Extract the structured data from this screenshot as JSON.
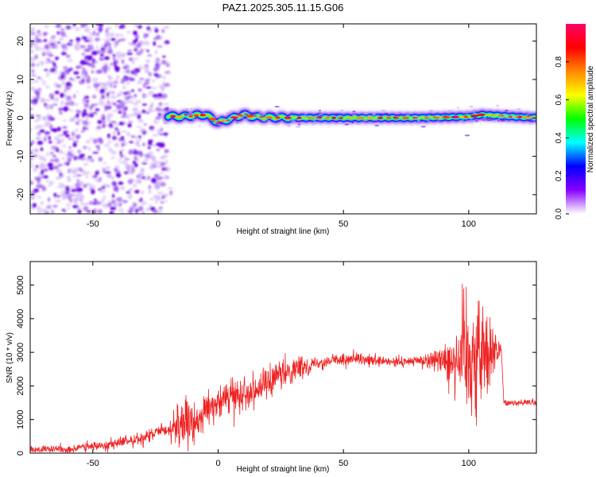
{
  "title": "PAZ1.2025.305.11.15.G06",
  "chart_data": [
    {
      "type": "heatmap",
      "xlabel": "Height of straight line (km)",
      "ylabel": "Frequency (Hz)",
      "xlim": [
        -75,
        127
      ],
      "ylim": [
        -25,
        24.5
      ],
      "xticks": [
        "-50",
        "0",
        "50",
        "100"
      ],
      "xtick_values": [
        -50,
        0,
        50,
        100
      ],
      "yticks": [
        "20",
        "10",
        "0",
        "-10",
        "-20"
      ],
      "ytick_values": [
        20,
        10,
        0,
        -10,
        -20
      ],
      "noise_region": [
        -75,
        -20
      ],
      "signal_track": {
        "x": [
          -20,
          -15,
          -10,
          -5,
          0,
          5,
          10,
          15,
          20,
          30,
          50,
          80,
          100,
          105,
          127
        ],
        "y": [
          0.5,
          0.3,
          0.6,
          0.8,
          -1.2,
          -0.2,
          0.8,
          0.2,
          0.1,
          0.0,
          0.0,
          0.0,
          0.3,
          0.8,
          0.0
        ]
      },
      "colorbar": {
        "label": "Normalized spectral amplitude",
        "range": [
          0,
          1
        ],
        "ticks": [
          "0.0",
          "0.2",
          "0.4",
          "0.6",
          "0.8"
        ],
        "tick_values": [
          0,
          0.2,
          0.4,
          0.6,
          0.8
        ],
        "colormap": [
          "#ffffff",
          "#8800ff",
          "#0000ff",
          "#00ffff",
          "#00ff00",
          "#ffff00",
          "#ff8800",
          "#ff0000",
          "#ff0066"
        ]
      }
    },
    {
      "type": "line",
      "xlabel": "Height of straight line (km)",
      "ylabel": "SNR (10 * v/v)",
      "xlim": [
        -75,
        127
      ],
      "ylim": [
        0,
        5700
      ],
      "xticks": [
        "-50",
        "0",
        "50",
        "100"
      ],
      "xtick_values": [
        -50,
        0,
        50,
        100
      ],
      "yticks": [
        "0",
        "1000",
        "2000",
        "3000",
        "4000",
        "5000"
      ],
      "ytick_values": [
        0,
        1000,
        2000,
        3000,
        4000,
        5000
      ],
      "color": "#ee2222",
      "trend": {
        "x": [
          -75,
          -60,
          -50,
          -40,
          -30,
          -20,
          -15,
          -10,
          -5,
          0,
          5,
          10,
          15,
          20,
          25,
          30,
          40,
          50,
          60,
          70,
          80,
          90,
          95,
          100,
          105,
          110,
          113,
          114,
          120,
          127
        ],
        "y": [
          100,
          120,
          200,
          300,
          450,
          700,
          900,
          800,
          1300,
          1500,
          1700,
          1800,
          1900,
          2100,
          2300,
          2500,
          2700,
          2800,
          2750,
          2700,
          2750,
          2800,
          2900,
          3000,
          3000,
          3050,
          3100,
          1500,
          1500,
          1500
        ]
      },
      "noise_amplitude": {
        "x": [
          -75,
          -20,
          -15,
          -10,
          0,
          20,
          40,
          80,
          90,
          95,
          100,
          105,
          110,
          113,
          114,
          127
        ],
        "y": [
          80,
          180,
          700,
          500,
          350,
          450,
          150,
          120,
          350,
          1200,
          1800,
          1500,
          700,
          150,
          80,
          80
        ]
      }
    }
  ]
}
